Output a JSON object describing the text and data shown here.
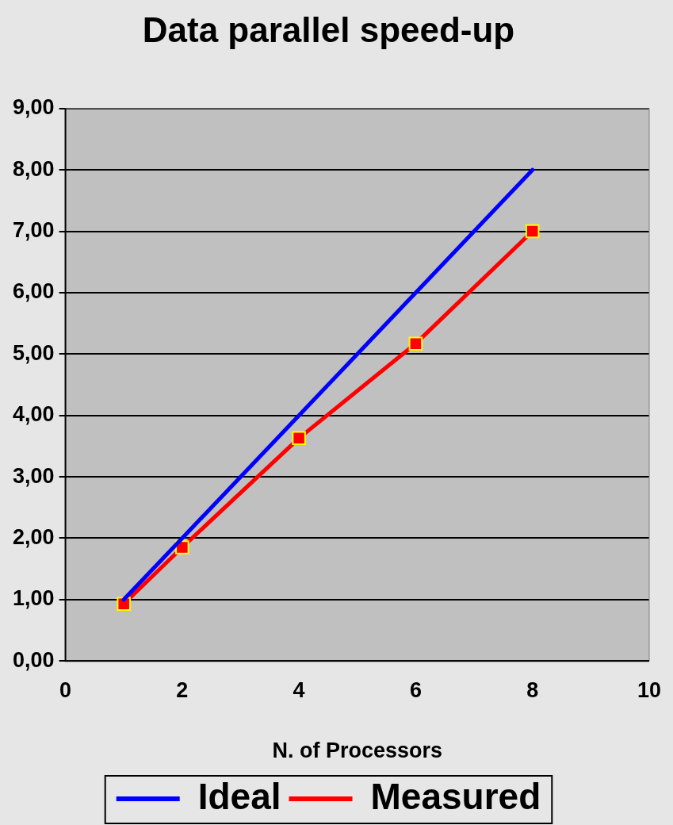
{
  "chart_data": {
    "type": "line",
    "title": "Data parallel speed-up",
    "xlabel": "N. of Processors",
    "x": [
      1,
      2,
      4,
      6,
      8
    ],
    "series": [
      {
        "name": "Ideal",
        "color": "#0000ff",
        "values": [
          1,
          2,
          4,
          6,
          8
        ],
        "marker": "none"
      },
      {
        "name": "Measured",
        "color": "#ff0000",
        "values": [
          0.93,
          1.85,
          3.63,
          5.17,
          7.0
        ],
        "marker": "square"
      }
    ],
    "xlim": [
      0,
      10
    ],
    "xticks": [
      0,
      2,
      4,
      6,
      8,
      10
    ],
    "ylim": [
      0,
      9
    ],
    "yticks": [
      {
        "value": 0,
        "label": "0,00"
      },
      {
        "value": 1,
        "label": "1,00"
      },
      {
        "value": 2,
        "label": "2,00"
      },
      {
        "value": 3,
        "label": "3,00"
      },
      {
        "value": 4,
        "label": "4,00"
      },
      {
        "value": 5,
        "label": "5,00"
      },
      {
        "value": 6,
        "label": "6,00"
      },
      {
        "value": 7,
        "label": "7,00"
      },
      {
        "value": 8,
        "label": "8,00"
      },
      {
        "value": 9,
        "label": "9,00"
      }
    ],
    "grid": "y",
    "legend": "bottom",
    "line_style": "solid"
  }
}
